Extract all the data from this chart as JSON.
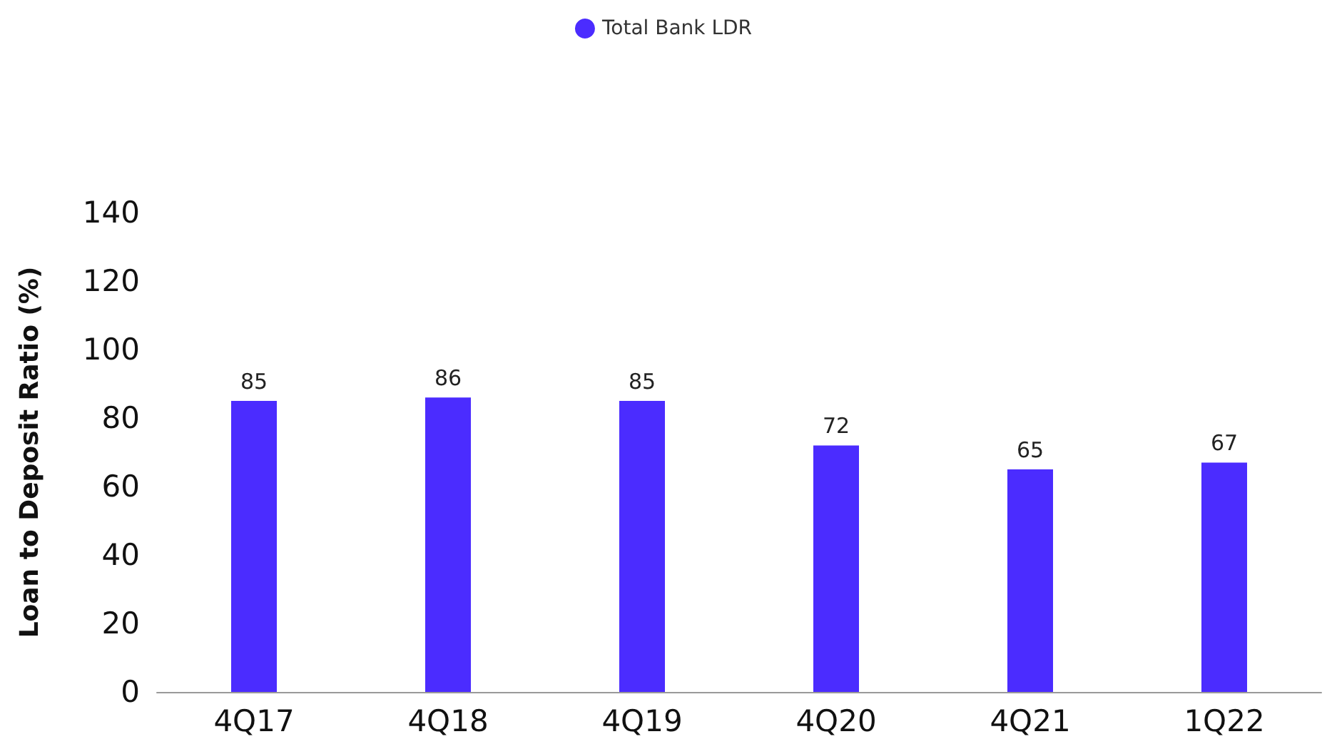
{
  "chart_data": {
    "type": "bar",
    "ylabel": "Loan to Deposit Ratio (%)",
    "categories": [
      "4Q17",
      "4Q18",
      "4Q19",
      "4Q20",
      "4Q21",
      "1Q22"
    ],
    "series": [
      {
        "name": "Total Bank LDR",
        "color": "#4b2cff",
        "values": [
          85,
          86,
          85,
          72,
          65,
          67
        ]
      }
    ],
    "ylim": [
      0,
      140
    ],
    "yticks": [
      0,
      20,
      40,
      60,
      80,
      100,
      120,
      140
    ],
    "data_labels": true,
    "grid": false,
    "legend": "top"
  }
}
